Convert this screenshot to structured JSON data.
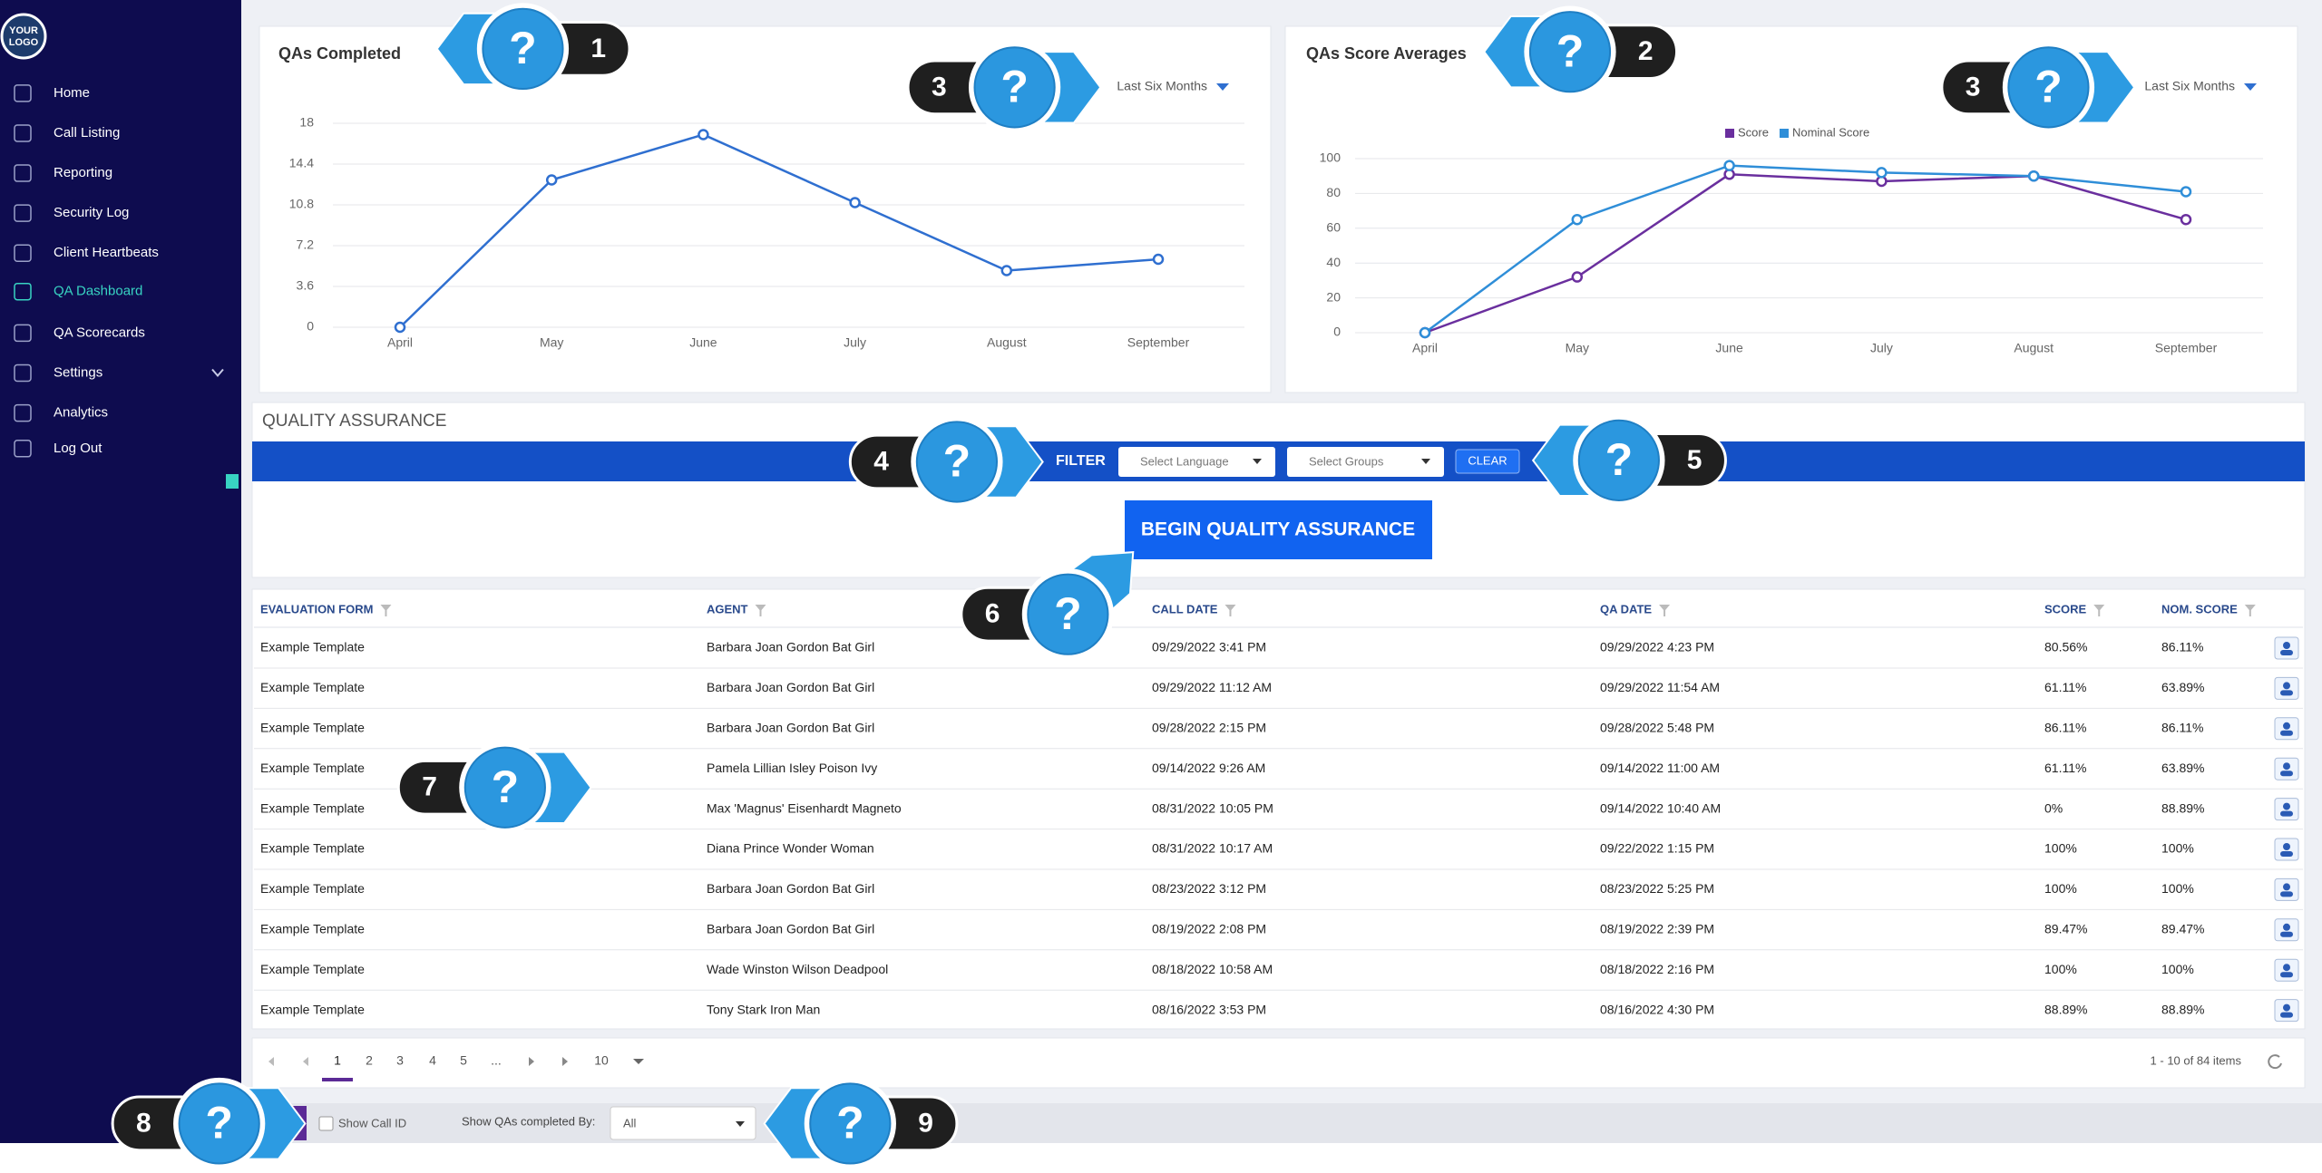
{
  "sidebar": {
    "logo": [
      "YOUR",
      "LOGO"
    ],
    "items": [
      {
        "label": "Home"
      },
      {
        "label": "Call Listing"
      },
      {
        "label": "Reporting"
      },
      {
        "label": "Security Log"
      },
      {
        "label": "Client Heartbeats"
      },
      {
        "label": "QA Dashboard",
        "active": true
      },
      {
        "label": "QA Scorecards"
      },
      {
        "label": "Settings",
        "expandable": true
      },
      {
        "label": "Analytics"
      },
      {
        "label": "Log Out"
      }
    ]
  },
  "chart_data": [
    {
      "type": "line",
      "title": "QAs Completed",
      "period": "Last Six Months",
      "categories": [
        "April",
        "May",
        "June",
        "July",
        "August",
        "September"
      ],
      "values": [
        0,
        13,
        17,
        11,
        5,
        6
      ],
      "color": "#2f6fd0",
      "ylim": [
        0,
        18
      ],
      "yticks": [
        0,
        3.6,
        7.2,
        10.8,
        14.4,
        18
      ],
      "grid": true
    },
    {
      "type": "line",
      "title": "QAs Score Averages",
      "period": "Last Six Months",
      "categories": [
        "April",
        "May",
        "June",
        "July",
        "August",
        "September"
      ],
      "series": [
        {
          "name": "Score",
          "color": "#6a2f9e",
          "values": [
            0,
            32,
            91,
            87,
            90,
            65
          ]
        },
        {
          "name": "Nominal Score",
          "color": "#2f8ed8",
          "values": [
            0,
            65,
            96,
            92,
            90,
            81
          ]
        }
      ],
      "ylim": [
        0,
        100
      ],
      "yticks": [
        0,
        20,
        40,
        60,
        80,
        100
      ],
      "grid": true,
      "legend": "top"
    }
  ],
  "quality_assurance": {
    "title": "QUALITY ASSURANCE",
    "filter_label": "FILTER",
    "language_placeholder": "Select Language",
    "groups_placeholder": "Select Groups",
    "clear": "CLEAR",
    "begin": "BEGIN QUALITY ASSURANCE"
  },
  "table": {
    "columns": [
      "EVALUATION FORM",
      "AGENT",
      "CALL DATE",
      "QA DATE",
      "SCORE",
      "NOM. SCORE"
    ],
    "rows": [
      [
        "Example Template",
        "Barbara Joan Gordon Bat Girl",
        "09/29/2022 3:41 PM",
        "09/29/2022 4:23 PM",
        "80.56%",
        "86.11%"
      ],
      [
        "Example Template",
        "Barbara Joan Gordon Bat Girl",
        "09/29/2022 11:12 AM",
        "09/29/2022 11:54 AM",
        "61.11%",
        "63.89%"
      ],
      [
        "Example Template",
        "Barbara Joan Gordon Bat Girl",
        "09/28/2022 2:15 PM",
        "09/28/2022 5:48 PM",
        "86.11%",
        "86.11%"
      ],
      [
        "Example Template",
        "Pamela Lillian Isley Poison Ivy",
        "09/14/2022 9:26 AM",
        "09/14/2022 11:00 AM",
        "61.11%",
        "63.89%"
      ],
      [
        "Example Template",
        "Max 'Magnus' Eisenhardt Magneto",
        "08/31/2022 10:05 PM",
        "09/14/2022 10:40 AM",
        "0%",
        "88.89%"
      ],
      [
        "Example Template",
        "Diana Prince Wonder Woman",
        "08/31/2022 10:17 AM",
        "09/22/2022 1:15 PM",
        "100%",
        "100%"
      ],
      [
        "Example Template",
        "Barbara Joan Gordon Bat Girl",
        "08/23/2022 3:12 PM",
        "08/23/2022 5:25 PM",
        "100%",
        "100%"
      ],
      [
        "Example Template",
        "Barbara Joan Gordon Bat Girl",
        "08/19/2022 2:08 PM",
        "08/19/2022 2:39 PM",
        "89.47%",
        "89.47%"
      ],
      [
        "Example Template",
        "Wade Winston Wilson Deadpool",
        "08/18/2022 10:58 AM",
        "08/18/2022 2:16 PM",
        "100%",
        "100%"
      ],
      [
        "Example Template",
        "Tony Stark Iron Man",
        "08/16/2022 3:53 PM",
        "08/16/2022 4:30 PM",
        "88.89%",
        "88.89%"
      ]
    ]
  },
  "pager": {
    "pages": [
      "1",
      "2",
      "3",
      "4",
      "5",
      "..."
    ],
    "current": 0,
    "page_size": "10",
    "summary": "1 - 10 of 84 items"
  },
  "footer": {
    "show_call_id": "Show Call ID",
    "completed_by_label": "Show QAs completed By:",
    "completed_by_value": "All"
  },
  "callouts": [
    {
      "number": "1",
      "icon": "?"
    },
    {
      "number": "2",
      "icon": "?"
    },
    {
      "number": "3",
      "icon": "?"
    },
    {
      "number": "3",
      "icon": "?"
    },
    {
      "number": "4",
      "icon": "?"
    },
    {
      "number": "5",
      "icon": "?"
    },
    {
      "number": "6",
      "icon": "?"
    },
    {
      "number": "7",
      "icon": "?"
    },
    {
      "number": "8",
      "icon": "?"
    },
    {
      "number": "9",
      "icon": "?"
    }
  ]
}
